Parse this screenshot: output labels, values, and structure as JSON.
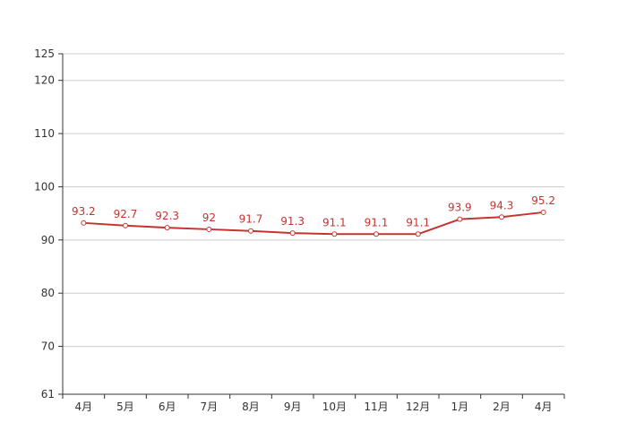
{
  "chart_data": {
    "type": "line",
    "categories": [
      "4月",
      "5月",
      "6月",
      "7月",
      "8月",
      "9月",
      "10月",
      "11月",
      "12月",
      "1月",
      "2月",
      "4月"
    ],
    "series": [
      {
        "values": [
          93.2,
          92.7,
          92.3,
          92,
          91.7,
          91.3,
          91.1,
          91.1,
          91.1,
          93.9,
          94.3,
          95.2
        ]
      }
    ],
    "yticks": [
      61,
      70,
      80,
      90,
      100,
      110,
      120,
      125
    ],
    "ylim": [
      61,
      125
    ],
    "grid": true,
    "colors": {
      "line": "#c23531",
      "grid": "#cccccc",
      "axis": "#333333",
      "marker_fill": "#ffffff"
    }
  }
}
